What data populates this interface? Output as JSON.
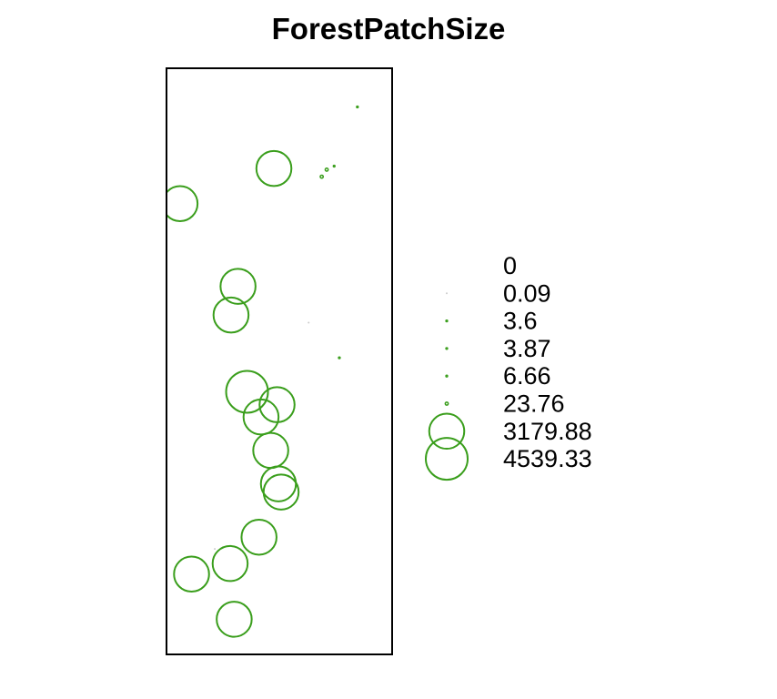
{
  "chart_data": {
    "type": "scatter",
    "title": "ForestPatchSize",
    "xlabel": "",
    "ylabel": "",
    "grid": false,
    "legend_placement": "right",
    "marker_color": "#3a9e1c",
    "frame_color": "#000000",
    "legend": {
      "entries": [
        "0",
        "0.09",
        "3.6",
        "3.87",
        "6.66",
        "23.76",
        "3179.88",
        "4539.33"
      ],
      "values": [
        0,
        0.09,
        3.6,
        3.87,
        6.66,
        23.76,
        3179.88,
        4539.33
      ]
    },
    "points": [
      {
        "x": 0.846,
        "y": 0.934,
        "value": 3.6
      },
      {
        "x": 0.743,
        "y": 0.833,
        "value": 6.66
      },
      {
        "x": 0.71,
        "y": 0.827,
        "value": 23.76
      },
      {
        "x": 0.688,
        "y": 0.815,
        "value": 23.76
      },
      {
        "x": 0.476,
        "y": 0.829,
        "value": 3179.88
      },
      {
        "x": 0.06,
        "y": 0.769,
        "value": 3179.88
      },
      {
        "x": 0.317,
        "y": 0.628,
        "value": 3179.88
      },
      {
        "x": 0.286,
        "y": 0.579,
        "value": 3179.88
      },
      {
        "x": 0.63,
        "y": 0.566,
        "value": 0.09
      },
      {
        "x": 0.766,
        "y": 0.506,
        "value": 3.87
      },
      {
        "x": 0.357,
        "y": 0.448,
        "value": 4539.33
      },
      {
        "x": 0.49,
        "y": 0.426,
        "value": 3179.88
      },
      {
        "x": 0.419,
        "y": 0.405,
        "value": 3179.88
      },
      {
        "x": 0.462,
        "y": 0.348,
        "value": 3179.88
      },
      {
        "x": 0.496,
        "y": 0.291,
        "value": 3179.88
      },
      {
        "x": 0.508,
        "y": 0.277,
        "value": 3179.88
      },
      {
        "x": 0.41,
        "y": 0.2,
        "value": 3179.88
      },
      {
        "x": 0.214,
        "y": 0.18,
        "value": 0.09
      },
      {
        "x": 0.282,
        "y": 0.155,
        "value": 3179.88
      },
      {
        "x": 0.111,
        "y": 0.137,
        "value": 3179.88
      },
      {
        "x": 0.3,
        "y": 0.06,
        "value": 3179.88
      }
    ]
  }
}
